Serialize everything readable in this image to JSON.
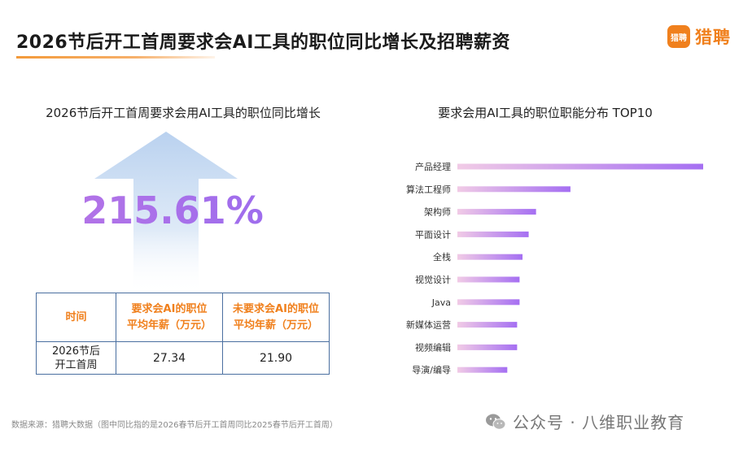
{
  "header": {
    "title": "2026节后开工首周要求会AI工具的职位同比增长及招聘薪资",
    "brand_badge": "猎聘",
    "brand_name": "猎聘"
  },
  "left_panel": {
    "title": "2026节后开工首周要求会用AI工具的职位同比增长",
    "growth_value": "215.61%"
  },
  "salary_table": {
    "headers": [
      "时间",
      "要求会AI的职位\n平均年薪（万元）",
      "未要求会AI的职位\n平均年薪（万元）"
    ],
    "rows": [
      [
        "2026节后\n开工首周",
        "27.34",
        "21.90"
      ]
    ]
  },
  "chart_data": {
    "type": "bar",
    "orientation": "horizontal",
    "title": "要求会用AI工具的职位职能分布 TOP10",
    "categories": [
      "产品经理",
      "算法工程师",
      "架构师",
      "平面设计",
      "全栈",
      "视觉设计",
      "Java",
      "新媒体运营",
      "视频编辑",
      "导演/编导"
    ],
    "values": [
      100,
      46,
      32,
      29,
      26.5,
      25.3,
      25.3,
      24.3,
      24.3,
      20.3
    ],
    "xlabel": "",
    "ylabel": "",
    "xlim": [
      0,
      100
    ],
    "grid": false,
    "legend": "none",
    "colors": {
      "bar_start": "#f1cbe6",
      "bar_end": "#a56ff2"
    }
  },
  "footer": {
    "source": "数据来源：猎聘大数据（图中同比指的是2026春节后开工首周同比2025春节后开工首周）",
    "watermark": "公众号 · 八维职业教育",
    "watermark_icon": "wechat-icon"
  },
  "colors": {
    "accent_orange": "#f0801d",
    "table_border": "#4a6fa0",
    "pct_purple": "#a56ff2",
    "arrow_blue": "#bcd3ee"
  }
}
